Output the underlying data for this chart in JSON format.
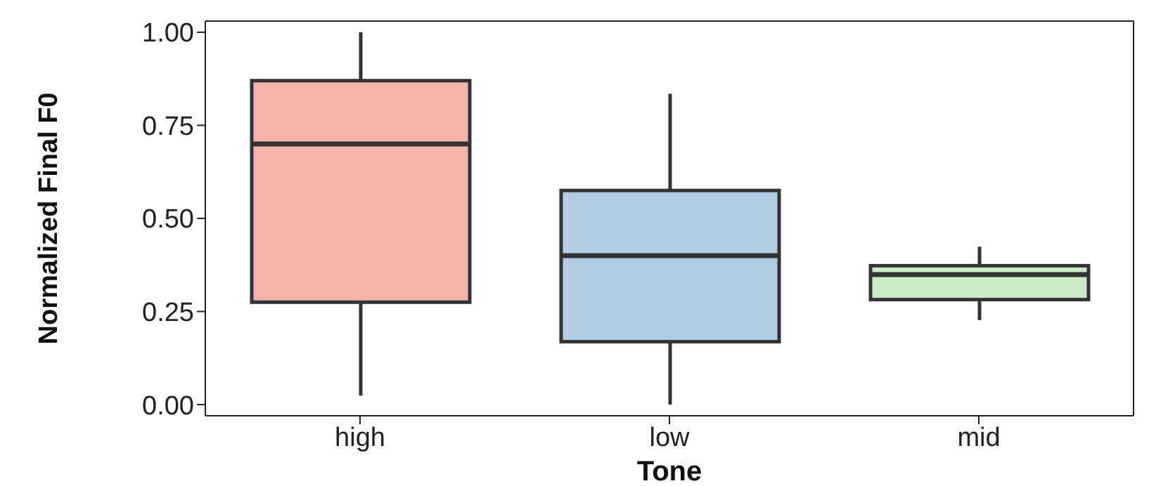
{
  "chart_data": {
    "type": "box",
    "xlabel": "Tone",
    "ylabel": "Normalized Final F0",
    "categories": [
      "high",
      "low",
      "mid"
    ],
    "colors": [
      "#f8b4ac",
      "#b3cde3",
      "#ccebc5"
    ],
    "boxes": [
      {
        "low": 0.024,
        "q1": 0.275,
        "median": 0.7,
        "q3": 0.87,
        "high": 1.0
      },
      {
        "low": 0.0,
        "q1": 0.169,
        "median": 0.4,
        "q3": 0.575,
        "high": 0.835
      },
      {
        "low": 0.227,
        "q1": 0.282,
        "median": 0.349,
        "q3": 0.373,
        "high": 0.424
      }
    ],
    "ylim": [
      -0.03,
      1.03
    ],
    "yticks": [
      {
        "value": 0,
        "label": "0.00"
      },
      {
        "value": 0.25,
        "label": "0.25"
      },
      {
        "value": 0.5,
        "label": "0.50"
      },
      {
        "value": 0.75,
        "label": "0.75"
      },
      {
        "value": 1,
        "label": "1.00"
      }
    ],
    "grid": false,
    "legend": false
  }
}
